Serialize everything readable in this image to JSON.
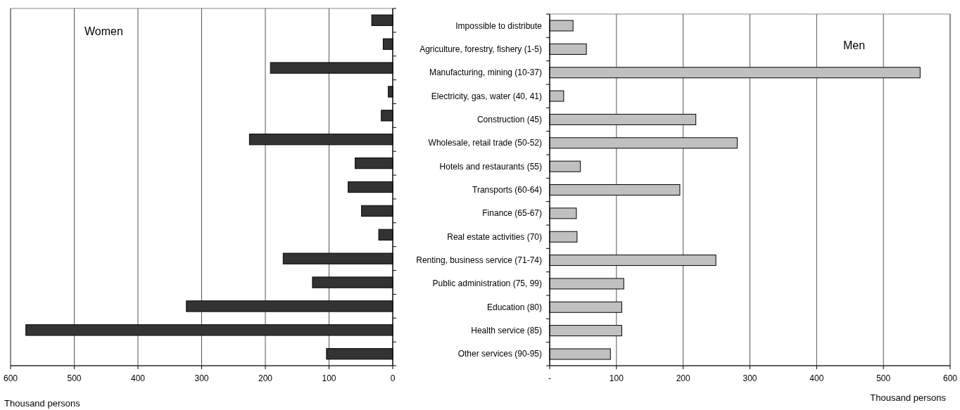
{
  "chart_data": [
    {
      "type": "bar",
      "orientation": "horizontal",
      "xlabel": "Thousand persons",
      "grid": "x",
      "categories": [
        null,
        null,
        null,
        null,
        null,
        null,
        null,
        null,
        null,
        null,
        null,
        null,
        null,
        null,
        null
      ],
      "series": [
        {
          "name": "Women",
          "color": "#333333",
          "values": [
            33,
            15,
            192,
            7,
            18,
            225,
            59,
            70,
            49,
            22,
            172,
            126,
            324,
            576,
            104
          ]
        }
      ],
      "xlim": [
        600,
        0
      ],
      "xticks": [
        600,
        500,
        400,
        300,
        200,
        100,
        0
      ]
    },
    {
      "type": "bar",
      "orientation": "horizontal",
      "xlabel": "Thousand persons",
      "grid": "x",
      "categories": [
        "Impossible to distribute",
        "Agriculture, forestry, fishery (1-5)",
        "Manufacturing, mining (10-37)",
        "Electricity, gas, water (40, 41)",
        "Construction (45)",
        "Wholesale, retail trade (50-52)",
        "Hotels and restaurants (55)",
        "Transports (60-64)",
        "Finance (65-67)",
        "Real estate activities (70)",
        "Renting, business service (71-74)",
        "Public administration (75, 99)",
        "Education (80)",
        "Health service (85)",
        "Other services (90-95)"
      ],
      "series": [
        {
          "name": "Men",
          "color": "#c0c0c0",
          "values": [
            35,
            55,
            555,
            21,
            219,
            281,
            46,
            195,
            40,
            41,
            249,
            111,
            108,
            108,
            91
          ]
        }
      ],
      "xlim": [
        0,
        600
      ],
      "xticks": [
        {
          "value": 0,
          "label": "-"
        },
        100,
        200,
        300,
        400,
        500,
        600
      ]
    }
  ]
}
